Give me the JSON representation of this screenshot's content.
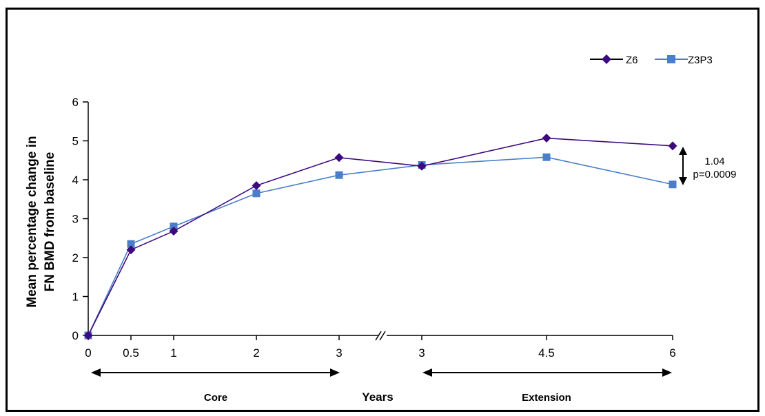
{
  "chart_data": {
    "type": "line",
    "ylabel_lines": [
      "Mean percentage change in",
      "FN BMD from baseline"
    ],
    "xlabel": "Years",
    "x_tick_labels": [
      "0",
      "0.5",
      "1",
      "2",
      "3",
      "3",
      "4.5",
      "6"
    ],
    "y_ticks": [
      "0",
      "1",
      "2",
      "3",
      "4",
      "5",
      "6"
    ],
    "ylim": [
      0,
      6
    ],
    "axis_break": "//",
    "series": [
      {
        "name": "Z6",
        "marker": "diamond",
        "color": "#3d0a7e",
        "values": [
          0,
          2.2,
          2.68,
          3.85,
          4.57,
          4.35,
          5.07,
          4.87
        ]
      },
      {
        "name": "Z3P3",
        "marker": "square",
        "color": "#4a7dca",
        "values": [
          0,
          2.35,
          2.8,
          3.65,
          4.12,
          4.38,
          4.58,
          3.88
        ]
      }
    ],
    "legend_position": "top-right",
    "annotation": {
      "line1": "1.04",
      "line2": "p=0.0009"
    },
    "phases": [
      {
        "label": "Core"
      },
      {
        "label": "Extension"
      }
    ],
    "grid": false
  }
}
